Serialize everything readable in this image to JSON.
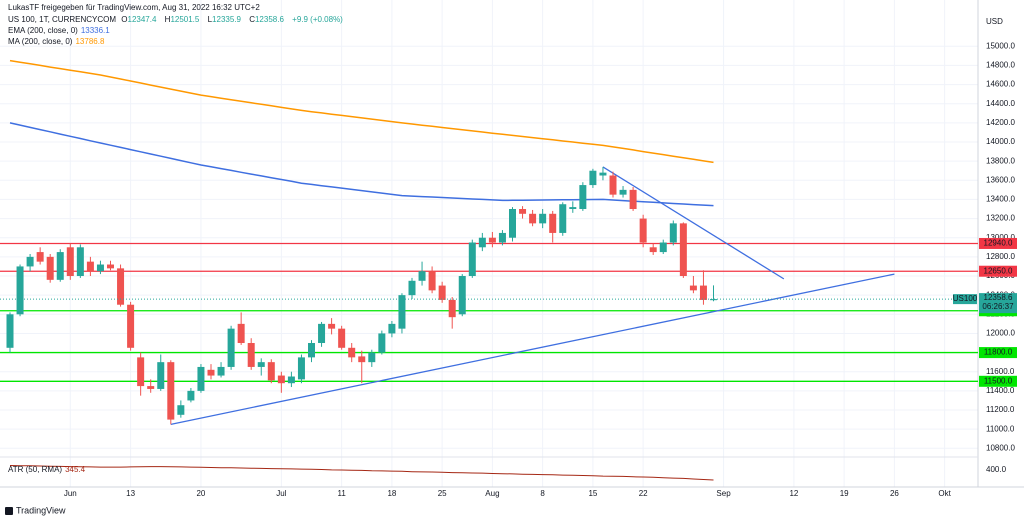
{
  "chart_data": {
    "type": "candlestick",
    "header": "LukasTF freigegeben für TradingView.com, Aug 31, 2022 16:32 UTC+2",
    "symbol": "US 100, 1T, CURRENCYCOM",
    "ohlc_letters": [
      "O",
      "H",
      "L",
      "C"
    ],
    "change_label": "+9.9 (+0.08%)",
    "currency": "USD",
    "footer": "TradingView",
    "up_color": "#26a69a",
    "down_color": "#ef5350",
    "grid": true,
    "categories": [
      null,
      null,
      null,
      null,
      null,
      null,
      "Jun",
      null,
      null,
      null,
      null,
      null,
      "13",
      null,
      null,
      null,
      null,
      null,
      null,
      "20",
      null,
      null,
      null,
      null,
      null,
      null,
      null,
      "Jul",
      null,
      null,
      null,
      null,
      null,
      "11",
      null,
      null,
      null,
      null,
      "18",
      null,
      null,
      null,
      null,
      "25",
      null,
      null,
      null,
      null,
      "Aug",
      null,
      null,
      null,
      null,
      "8",
      null,
      null,
      null,
      null,
      "15",
      null,
      null,
      null,
      null,
      "22",
      null,
      null,
      null,
      null,
      null,
      null,
      null,
      "Sep",
      null,
      null,
      null,
      null,
      null,
      null,
      "12",
      null,
      null,
      null,
      null,
      "19",
      null,
      null,
      null,
      null,
      "26",
      null,
      null,
      null,
      null,
      "Okt",
      null,
      null,
      null
    ],
    "open": [
      11850,
      12200,
      12700,
      12850,
      12800,
      12560,
      12900,
      12600,
      12750,
      12650,
      12720,
      12680,
      12300,
      11750,
      11450,
      11420,
      11700,
      11150,
      11300,
      11400,
      11620,
      11560,
      11650,
      12100,
      11900,
      11650,
      11700,
      11560,
      11480,
      11520,
      11750,
      11900,
      12100,
      12050,
      11850,
      11760,
      11700,
      11800,
      12000,
      12050,
      12400,
      12550,
      12650,
      12500,
      12350,
      12200,
      12600,
      12900,
      13000,
      12950,
      13000,
      13300,
      13250,
      13150,
      13250,
      13050,
      13300,
      13300,
      13550,
      13650,
      13650,
      13450,
      13500,
      13200,
      12900,
      12850,
      12950,
      13150,
      12500,
      12500,
      12347.4,
      null,
      null,
      null,
      null,
      null,
      null,
      null,
      null,
      null,
      null,
      null,
      null,
      null,
      null,
      null,
      null,
      null,
      null,
      null,
      null,
      null,
      null,
      null,
      null,
      null,
      null
    ],
    "high": [
      12220,
      12720,
      12830,
      12900,
      12830,
      12880,
      12940,
      12930,
      12800,
      12760,
      12760,
      12720,
      12330,
      11800,
      11520,
      11780,
      11720,
      11300,
      11430,
      11680,
      11680,
      11700,
      12080,
      12220,
      11950,
      11740,
      11730,
      11600,
      11600,
      11780,
      11930,
      12120,
      12160,
      12080,
      11900,
      11820,
      11830,
      12030,
      12130,
      12420,
      12580,
      12750,
      12700,
      12540,
      12380,
      12620,
      12980,
      13050,
      13060,
      13080,
      13320,
      13330,
      13290,
      13300,
      13280,
      13370,
      13380,
      13580,
      13720,
      13740,
      13690,
      13540,
      13530,
      13240,
      12940,
      12980,
      13180,
      13160,
      12600,
      12660,
      12501.5,
      null,
      null,
      null,
      null,
      null,
      null,
      null,
      null,
      null,
      null,
      null,
      null,
      null,
      null,
      null,
      null,
      null,
      null,
      null,
      null,
      null,
      null,
      null,
      null,
      null,
      null
    ],
    "low": [
      11800,
      12180,
      12650,
      12720,
      12530,
      12540,
      12560,
      12580,
      12600,
      12620,
      12660,
      12280,
      11820,
      11350,
      11380,
      11400,
      11050,
      11120,
      11280,
      11380,
      11520,
      11540,
      11620,
      11880,
      11620,
      11560,
      11480,
      11380,
      11440,
      11480,
      11700,
      11860,
      11990,
      11830,
      11700,
      11480,
      11650,
      11780,
      11960,
      12000,
      12360,
      12500,
      12420,
      12320,
      12050,
      12180,
      12580,
      12860,
      12900,
      12920,
      12960,
      13200,
      13120,
      13100,
      12950,
      13020,
      13260,
      13280,
      13520,
      13600,
      13420,
      13420,
      13280,
      12900,
      12820,
      12830,
      12920,
      12580,
      12420,
      12300,
      12335.9,
      null,
      null,
      null,
      null,
      null,
      null,
      null,
      null,
      null,
      null,
      null,
      null,
      null,
      null,
      null,
      null,
      null,
      null,
      null,
      null,
      null,
      null,
      null,
      null,
      null,
      null
    ],
    "close": [
      12200,
      12700,
      12800,
      12750,
      12560,
      12850,
      12600,
      12900,
      12650,
      12720,
      12680,
      12300,
      11850,
      11450,
      11420,
      11700,
      11100,
      11250,
      11400,
      11650,
      11560,
      11650,
      12050,
      11900,
      11650,
      11700,
      11510,
      11480,
      11550,
      11750,
      11900,
      12100,
      12050,
      11850,
      11750,
      11700,
      11800,
      12000,
      12100,
      12400,
      12550,
      12650,
      12450,
      12350,
      12170,
      12600,
      12950,
      13000,
      12950,
      13050,
      13300,
      13250,
      13150,
      13250,
      13050,
      13350,
      13320,
      13550,
      13700,
      13680,
      13450,
      13500,
      13300,
      12950,
      12850,
      12950,
      13150,
      12600,
      12450,
      12350,
      12358.6,
      null,
      null,
      null,
      null,
      null,
      null,
      null,
      null,
      null,
      null,
      null,
      null,
      null,
      null,
      null,
      null,
      null,
      null,
      null,
      null,
      null,
      null,
      null,
      null,
      null,
      null
    ],
    "ylim": [
      10730,
      15400
    ],
    "yticks": [
      {
        "value": 10800,
        "label": "10800.0"
      },
      {
        "value": 11000,
        "label": "11000.0"
      },
      {
        "value": 11200,
        "label": "11200.0"
      },
      {
        "value": 11400,
        "label": "11400.0"
      },
      {
        "value": 11600,
        "label": "11600.0"
      },
      {
        "value": 11800,
        "label": "11800.0"
      },
      {
        "value": 12000,
        "label": "12000.0"
      },
      {
        "value": 12200,
        "label": "12200.0"
      },
      {
        "value": 12400,
        "label": "12400.0"
      },
      {
        "value": 12600,
        "label": "12600.0"
      },
      {
        "value": 12800,
        "label": "12800.0"
      },
      {
        "value": 13000,
        "label": "13000.0"
      },
      {
        "value": 13200,
        "label": "13200.0"
      },
      {
        "value": 13400,
        "label": "13400.0"
      },
      {
        "value": 13600,
        "label": "13600.0"
      },
      {
        "value": 13800,
        "label": "13800.0"
      },
      {
        "value": 14000,
        "label": "14000.0"
      },
      {
        "value": 14200,
        "label": "14200.0"
      },
      {
        "value": 14400,
        "label": "14400.0"
      },
      {
        "value": 14600,
        "label": "14600.0"
      },
      {
        "value": 14800,
        "label": "14800.0"
      },
      {
        "value": 15000,
        "label": "15000.0"
      }
    ],
    "overlays": [
      {
        "name": "EMA (200, close, 0)",
        "color": "#3f6fe0",
        "values": [
          14200,
          14177,
          14153,
          14130,
          14107,
          14083,
          14060,
          14037,
          14013,
          13990,
          13967,
          13944,
          13921,
          13898,
          13875,
          13852,
          13829,
          13806,
          13783,
          13760,
          13741,
          13722,
          13703,
          13684,
          13665,
          13646,
          13627,
          13608,
          13589,
          13570,
          13557,
          13544,
          13531,
          13518,
          13505,
          13492,
          13479,
          13466,
          13453,
          13440,
          13435,
          13430,
          13425,
          13420,
          13415,
          13410,
          13405,
          13400,
          13395,
          13390,
          13391,
          13392,
          13393,
          13394,
          13395,
          13396,
          13397,
          13398,
          13399,
          13400,
          13394,
          13388,
          13382,
          13376,
          13370,
          13364,
          13358,
          13352,
          13346,
          13341,
          13336.1,
          null,
          null,
          null,
          null,
          null,
          null,
          null,
          null,
          null,
          null,
          null,
          null,
          null,
          null,
          null,
          null,
          null,
          null,
          null,
          null,
          null,
          null,
          null,
          null,
          null,
          null
        ]
      },
      {
        "name": "MA (200, close, 0)",
        "color": "#ff9800",
        "values": [
          14850,
          14833,
          14817,
          14800,
          14783,
          14767,
          14750,
          14733,
          14717,
          14700,
          14679,
          14658,
          14637,
          14616,
          14595,
          14574,
          14553,
          14532,
          14511,
          14490,
          14474,
          14458,
          14442,
          14426,
          14410,
          14394,
          14378,
          14362,
          14346,
          14330,
          14317,
          14304,
          14291,
          14278,
          14265,
          14252,
          14239,
          14226,
          14213,
          14200,
          14188,
          14176,
          14164,
          14152,
          14140,
          14128,
          14116,
          14104,
          14092,
          14080,
          14069,
          14057,
          14046,
          14034,
          14023,
          14011,
          14000,
          13988,
          13977,
          13965,
          13949,
          13933,
          13917,
          13900,
          13884,
          13868,
          13852,
          13836,
          13820,
          13803,
          13786.8,
          null,
          null,
          null,
          null,
          null,
          null,
          null,
          null,
          null,
          null,
          null,
          null,
          null,
          null,
          null,
          null,
          null,
          null,
          null,
          null,
          null,
          null,
          null,
          null,
          null,
          null
        ]
      }
    ],
    "trendlines": [
      {
        "color": "#3f6fe0",
        "x": [
          16,
          88
        ],
        "values": [
          11050,
          12620
        ]
      },
      {
        "color": "#3f6fe0",
        "x": [
          59,
          77
        ],
        "values": [
          13740,
          12570
        ]
      }
    ],
    "levels": [
      {
        "value": 12940,
        "label": "12940.0",
        "color": "#f23645",
        "text_color": "#ffffff"
      },
      {
        "value": 12650,
        "label": "12650.0",
        "color": "#f23645",
        "text_color": "#ffffff"
      },
      {
        "value": 12237,
        "label": "12237.0",
        "color": "#00e600",
        "text_color": "#131722"
      },
      {
        "value": 11800,
        "label": "11800.0",
        "color": "#00e600",
        "text_color": "#131722"
      },
      {
        "value": 11500,
        "label": "11500.0",
        "color": "#00e600",
        "text_color": "#131722"
      }
    ],
    "last_price": {
      "name": "US100",
      "countdown": "06:26:37",
      "color": "#26a69a"
    },
    "atr": {
      "name": "ATR (50, RMA)",
      "color": "#a52714",
      "ylim": [
        307,
        466
      ],
      "yticks": [
        {
          "value": 400,
          "label": "400.0"
        }
      ],
      "values": [
        425,
        424,
        423,
        422,
        421,
        420,
        419,
        418,
        417,
        416,
        416,
        416,
        417,
        418,
        419,
        419,
        418,
        417,
        416,
        415,
        414,
        413,
        412,
        411,
        410,
        409,
        408,
        407,
        406,
        405,
        404,
        403,
        401,
        400,
        399,
        398,
        396,
        395,
        394,
        393,
        391,
        390,
        389,
        388,
        386,
        385,
        384,
        383,
        381,
        380,
        379,
        377,
        376,
        375,
        374,
        372,
        371,
        370,
        369,
        367,
        366,
        365,
        363,
        362,
        360,
        358,
        356,
        354,
        351,
        348,
        345.4,
        null,
        null,
        null,
        null,
        null,
        null,
        null,
        null,
        null,
        null,
        null,
        null,
        null,
        null,
        null,
        null,
        null,
        null,
        null,
        null,
        null,
        null,
        null,
        null,
        null,
        null
      ]
    }
  }
}
